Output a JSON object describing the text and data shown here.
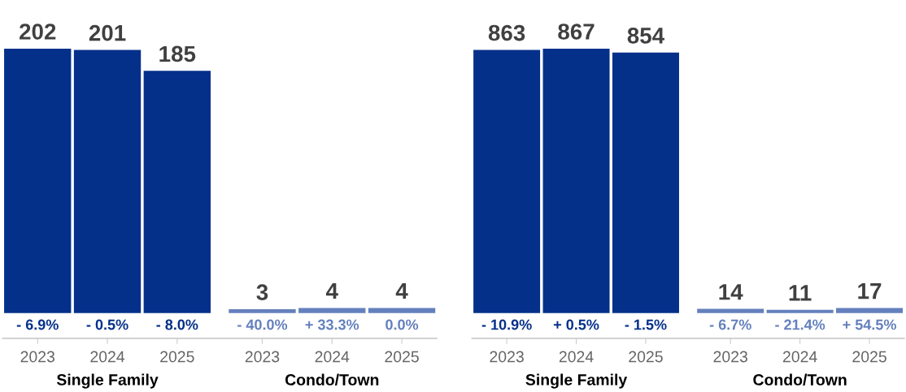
{
  "chart_data": [
    {
      "type": "bar",
      "categories": [
        "2023",
        "2024",
        "2025",
        "2023",
        "2024",
        "2025"
      ],
      "data_labels": true,
      "series": [
        {
          "color": "#05308a",
          "values": [
            202,
            201,
            185,
            null,
            null,
            null
          ]
        },
        {
          "color": "#6480bd",
          "values": [
            null,
            null,
            null,
            3,
            4,
            4
          ]
        }
      ],
      "annotations": [
        "- 6.9%",
        "- 0.5%",
        "- 8.0%",
        "- 40.0%",
        "+ 33.3%",
        "0.0%",
        "Single Family",
        "Condo/Town"
      ]
    },
    {
      "type": "bar",
      "categories": [
        "2023",
        "2024",
        "2025",
        "2023",
        "2024",
        "2025"
      ],
      "data_labels": true,
      "series": [
        {
          "color": "#05308a",
          "values": [
            863,
            867,
            854,
            null,
            null,
            null
          ]
        },
        {
          "color": "#6480bd",
          "values": [
            null,
            null,
            null,
            14,
            11,
            17
          ]
        }
      ],
      "annotations": [
        "- 10.9%",
        "+ 0.5%",
        "- 1.5%",
        "- 6.7%",
        "- 21.4%",
        "+ 54.5%",
        "Single Family",
        "Condo/Town"
      ]
    }
  ]
}
